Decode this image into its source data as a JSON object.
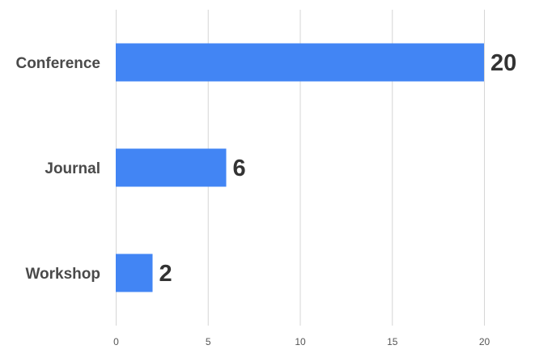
{
  "chart_data": {
    "type": "bar",
    "orientation": "horizontal",
    "categories": [
      "Conference",
      "Journal",
      "Workshop"
    ],
    "values": [
      20,
      6,
      2
    ],
    "data_labels": [
      "20",
      "6",
      "2"
    ],
    "x_ticks": [
      "0",
      "5",
      "10",
      "15",
      "20"
    ],
    "xlim": [
      0,
      20
    ],
    "title": "",
    "xlabel": "",
    "ylabel": "",
    "grid": true,
    "legend": "none",
    "bar_color": "#4285f4"
  }
}
